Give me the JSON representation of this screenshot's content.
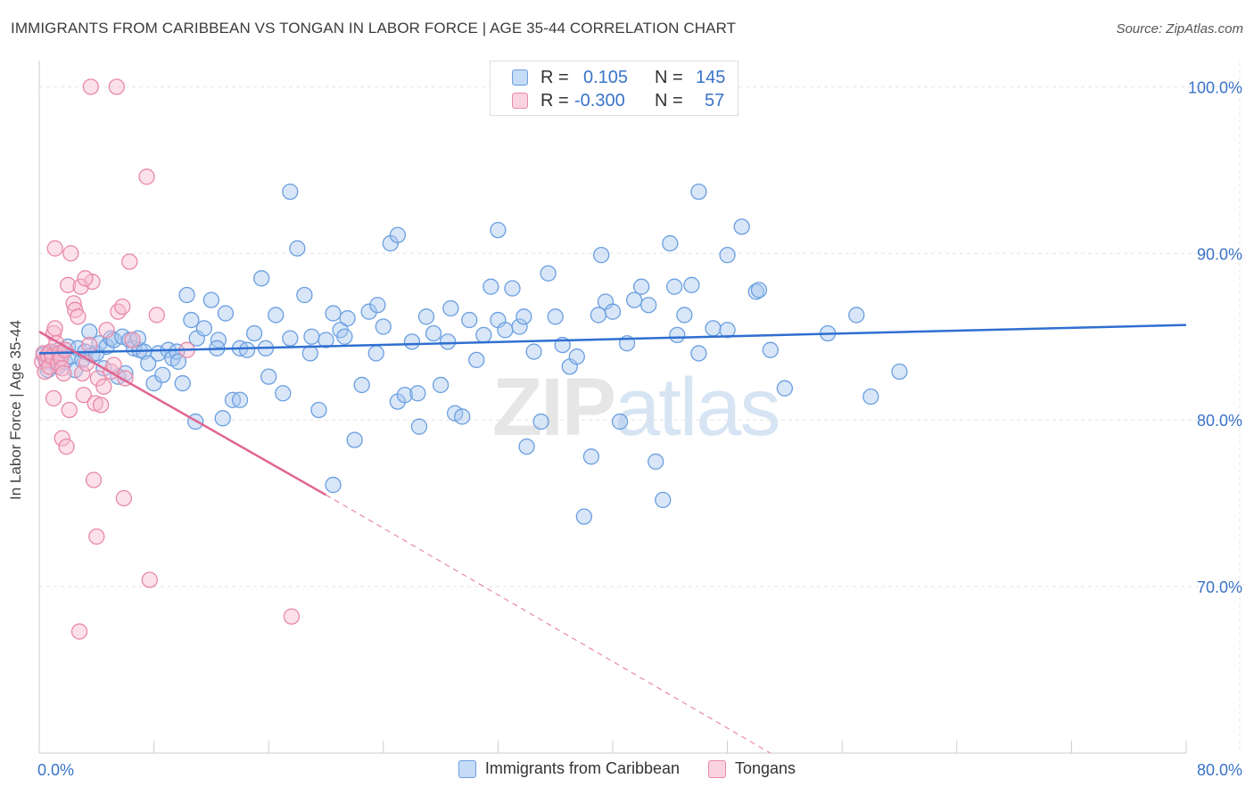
{
  "title": "IMMIGRANTS FROM CARIBBEAN VS TONGAN IN LABOR FORCE | AGE 35-44 CORRELATION CHART",
  "source": "Source: ZipAtlas.com",
  "watermark": {
    "zip": "ZIP",
    "atlas": "atlas"
  },
  "legend_top": [
    {
      "r_label": "R =",
      "r_value": "0.105",
      "n_label": "N =",
      "n_value": "145",
      "color": "#a8c8f0",
      "border": "#6a9fe0"
    },
    {
      "r_label": "R =",
      "r_value": "-0.300",
      "n_label": "N =",
      "n_value": "57",
      "color": "#f8bcd0",
      "border": "#e889a8"
    }
  ],
  "legend_bottom": [
    {
      "label": "Immigrants from Caribbean",
      "color": "#c6dbf5",
      "border": "#6a9fe0"
    },
    {
      "label": "Tongans",
      "color": "#fbd3e0",
      "border": "#e889a8"
    }
  ],
  "chart_data": {
    "type": "scatter",
    "title": "IMMIGRANTS FROM CARIBBEAN VS TONGAN IN LABOR FORCE | AGE 35-44 CORRELATION CHART",
    "xlabel": "",
    "ylabel": "In Labor Force | Age 35-44",
    "xlim": [
      0,
      80
    ],
    "ylim": [
      60,
      102
    ],
    "x_tick_labels": [
      "0.0%",
      "80.0%"
    ],
    "y_ticks": [
      70,
      80,
      90,
      100
    ],
    "y_tick_labels": [
      "70.0%",
      "80.0%",
      "90.0%",
      "100.0%"
    ],
    "grid": true,
    "series": [
      {
        "name": "Immigrants from Caribbean",
        "color": "#6a9fe0",
        "fill": "#a8c8f0",
        "trend": {
          "x0": 0,
          "y0": 84.0,
          "x1": 80,
          "y1": 85.7
        },
        "points": [
          [
            0.3,
            83.9
          ],
          [
            0.5,
            83.5
          ],
          [
            0.6,
            83.0
          ],
          [
            0.8,
            84.1
          ],
          [
            0.9,
            83.6
          ],
          [
            1.0,
            84.0
          ],
          [
            1.1,
            83.8
          ],
          [
            1.3,
            83.2
          ],
          [
            1.4,
            84.2
          ],
          [
            1.6,
            84.0
          ],
          [
            1.8,
            83.5
          ],
          [
            2.0,
            84.4
          ],
          [
            2.2,
            83.8
          ],
          [
            2.5,
            83.0
          ],
          [
            2.7,
            84.3
          ],
          [
            3.0,
            83.6
          ],
          [
            3.2,
            84.1
          ],
          [
            3.5,
            85.3
          ],
          [
            3.7,
            83.9
          ],
          [
            4.0,
            84.0
          ],
          [
            4.2,
            84.6
          ],
          [
            4.5,
            83.1
          ],
          [
            4.7,
            84.4
          ],
          [
            5.0,
            84.9
          ],
          [
            5.2,
            84.8
          ],
          [
            5.5,
            82.6
          ],
          [
            5.8,
            85.0
          ],
          [
            6.0,
            82.8
          ],
          [
            6.3,
            84.8
          ],
          [
            6.6,
            84.3
          ],
          [
            7.0,
            84.2
          ],
          [
            7.3,
            84.1
          ],
          [
            7.6,
            83.4
          ],
          [
            8.0,
            82.2
          ],
          [
            8.3,
            84.0
          ],
          [
            8.6,
            82.7
          ],
          [
            9.0,
            84.2
          ],
          [
            9.3,
            83.7
          ],
          [
            9.6,
            84.1
          ],
          [
            10.0,
            82.2
          ],
          [
            10.3,
            87.5
          ],
          [
            10.6,
            86.0
          ],
          [
            11.0,
            84.9
          ],
          [
            11.5,
            85.5
          ],
          [
            12.0,
            87.2
          ],
          [
            12.5,
            84.8
          ],
          [
            13.0,
            86.4
          ],
          [
            13.5,
            81.2
          ],
          [
            14.0,
            84.3
          ],
          [
            14.5,
            84.2
          ],
          [
            15.0,
            85.2
          ],
          [
            15.5,
            88.5
          ],
          [
            16.0,
            82.6
          ],
          [
            16.5,
            86.3
          ],
          [
            17.0,
            81.6
          ],
          [
            17.5,
            84.9
          ],
          [
            18.0,
            90.3
          ],
          [
            18.5,
            87.5
          ],
          [
            19.0,
            85.0
          ],
          [
            19.5,
            80.6
          ],
          [
            20.0,
            84.8
          ],
          [
            20.5,
            86.4
          ],
          [
            21.0,
            85.4
          ],
          [
            21.5,
            86.1
          ],
          [
            22.0,
            78.8
          ],
          [
            22.5,
            82.1
          ],
          [
            23.0,
            86.5
          ],
          [
            23.5,
            84.0
          ],
          [
            24.0,
            85.6
          ],
          [
            24.5,
            90.6
          ],
          [
            25.0,
            81.1
          ],
          [
            25.5,
            81.5
          ],
          [
            26.0,
            84.7
          ],
          [
            26.5,
            79.6
          ],
          [
            27.0,
            86.2
          ],
          [
            27.5,
            85.2
          ],
          [
            28.0,
            82.1
          ],
          [
            28.5,
            84.7
          ],
          [
            29.0,
            80.4
          ],
          [
            29.5,
            80.2
          ],
          [
            30.0,
            86.0
          ],
          [
            30.5,
            83.6
          ],
          [
            31.0,
            85.1
          ],
          [
            31.5,
            88.0
          ],
          [
            32.0,
            86.0
          ],
          [
            32.5,
            85.4
          ],
          [
            33.0,
            87.9
          ],
          [
            33.5,
            85.6
          ],
          [
            34.0,
            78.4
          ],
          [
            34.5,
            84.1
          ],
          [
            35.0,
            79.9
          ],
          [
            35.5,
            88.8
          ],
          [
            36.0,
            86.2
          ],
          [
            36.5,
            84.5
          ],
          [
            37.0,
            83.2
          ],
          [
            37.5,
            83.8
          ],
          [
            38.0,
            74.2
          ],
          [
            38.5,
            77.8
          ],
          [
            39.0,
            86.3
          ],
          [
            39.5,
            87.1
          ],
          [
            40.0,
            86.5
          ],
          [
            40.5,
            79.9
          ],
          [
            41.0,
            84.6
          ],
          [
            41.5,
            87.2
          ],
          [
            42.0,
            88.0
          ],
          [
            42.5,
            86.9
          ],
          [
            43.0,
            77.5
          ],
          [
            43.5,
            75.2
          ],
          [
            44.0,
            90.6
          ],
          [
            44.5,
            85.1
          ],
          [
            45.0,
            86.3
          ],
          [
            45.5,
            88.1
          ],
          [
            46.0,
            84.0
          ],
          [
            47.0,
            85.5
          ],
          [
            48.0,
            85.4
          ],
          [
            49.0,
            91.6
          ],
          [
            50.0,
            87.7
          ],
          [
            51.0,
            84.2
          ],
          [
            52.0,
            81.9
          ],
          [
            55.0,
            85.2
          ],
          [
            57.0,
            86.3
          ],
          [
            58.0,
            81.4
          ],
          [
            60.0,
            82.9
          ],
          [
            20.5,
            76.1
          ],
          [
            10.9,
            79.9
          ],
          [
            12.8,
            80.1
          ],
          [
            17.5,
            93.7
          ],
          [
            25.0,
            91.1
          ],
          [
            32.0,
            91.4
          ],
          [
            46.0,
            93.7
          ],
          [
            48.0,
            89.9
          ],
          [
            50.2,
            87.8
          ],
          [
            14.0,
            81.2
          ],
          [
            15.8,
            84.3
          ],
          [
            23.6,
            86.9
          ],
          [
            26.4,
            81.6
          ],
          [
            28.7,
            86.7
          ],
          [
            33.8,
            86.2
          ],
          [
            39.2,
            89.9
          ],
          [
            44.3,
            88.0
          ],
          [
            6.9,
            84.9
          ],
          [
            9.7,
            83.5
          ],
          [
            12.4,
            84.3
          ],
          [
            18.9,
            84.0
          ],
          [
            21.3,
            85.0
          ]
        ]
      },
      {
        "name": "Tongans",
        "color": "#e889a8",
        "fill": "#f8bcd0",
        "trend": {
          "x0": 0,
          "y0": 85.3,
          "x1": 20,
          "y1": 75.5,
          "dash_x1": 51,
          "dash_y1": 60.0
        },
        "points": [
          [
            0.2,
            83.5
          ],
          [
            0.3,
            84.0
          ],
          [
            0.4,
            82.9
          ],
          [
            0.5,
            83.6
          ],
          [
            0.6,
            83.9
          ],
          [
            0.7,
            83.2
          ],
          [
            0.8,
            84.1
          ],
          [
            0.9,
            83.8
          ],
          [
            1.0,
            85.2
          ],
          [
            1.1,
            85.5
          ],
          [
            1.2,
            84.6
          ],
          [
            1.3,
            83.4
          ],
          [
            1.4,
            84.0
          ],
          [
            1.5,
            83.7
          ],
          [
            1.6,
            83.1
          ],
          [
            1.7,
            82.8
          ],
          [
            1.8,
            84.2
          ],
          [
            2.0,
            88.1
          ],
          [
            2.1,
            80.6
          ],
          [
            2.2,
            90.0
          ],
          [
            2.4,
            87.0
          ],
          [
            2.5,
            86.6
          ],
          [
            2.7,
            86.2
          ],
          [
            2.9,
            88.0
          ],
          [
            3.0,
            82.8
          ],
          [
            3.1,
            81.5
          ],
          [
            3.3,
            83.4
          ],
          [
            3.5,
            84.5
          ],
          [
            3.7,
            88.3
          ],
          [
            3.9,
            81.0
          ],
          [
            4.1,
            82.5
          ],
          [
            4.3,
            80.9
          ],
          [
            4.5,
            82.0
          ],
          [
            4.7,
            85.4
          ],
          [
            5.0,
            82.9
          ],
          [
            5.2,
            83.3
          ],
          [
            5.5,
            86.5
          ],
          [
            5.8,
            86.8
          ],
          [
            6.0,
            82.5
          ],
          [
            6.5,
            84.8
          ],
          [
            1.1,
            90.3
          ],
          [
            1.6,
            78.9
          ],
          [
            1.9,
            78.4
          ],
          [
            3.8,
            76.4
          ],
          [
            4.0,
            73.0
          ],
          [
            5.9,
            75.3
          ],
          [
            7.7,
            70.4
          ],
          [
            2.8,
            67.3
          ],
          [
            7.5,
            94.6
          ],
          [
            3.6,
            100.0
          ],
          [
            5.4,
            100.0
          ],
          [
            6.3,
            89.5
          ],
          [
            1.0,
            81.3
          ],
          [
            3.2,
            88.5
          ],
          [
            8.2,
            86.3
          ],
          [
            10.3,
            84.2
          ],
          [
            17.6,
            68.2
          ]
        ]
      }
    ]
  }
}
